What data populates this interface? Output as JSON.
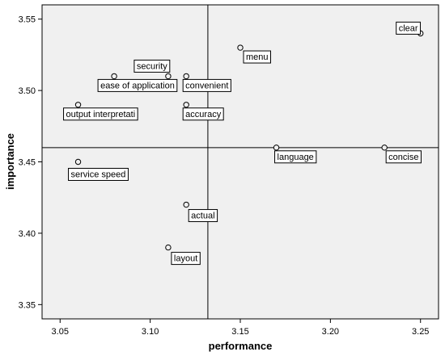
{
  "chart_data": {
    "type": "scatter",
    "title": "",
    "xlabel": "performance",
    "ylabel": "importance",
    "xlim": [
      3.04,
      3.26
    ],
    "ylim": [
      3.34,
      3.56
    ],
    "xticks": [
      "3.05",
      "3.10",
      "3.15",
      "3.20",
      "3.25"
    ],
    "xtick_values": [
      3.05,
      3.1,
      3.15,
      3.2,
      3.25
    ],
    "yticks": [
      "3.35",
      "3.40",
      "3.45",
      "3.50",
      "3.55"
    ],
    "ytick_values": [
      3.35,
      3.4,
      3.45,
      3.5,
      3.55
    ],
    "reference_lines": {
      "x": 3.132,
      "y": 3.46
    },
    "grid": false,
    "background": "#f0f0f0",
    "points": [
      {
        "label": "clear",
        "x": 3.25,
        "y": 3.54
      },
      {
        "label": "menu",
        "x": 3.15,
        "y": 3.53
      },
      {
        "label": "security",
        "x": 3.11,
        "y": 3.51
      },
      {
        "label": "ease of application",
        "x": 3.08,
        "y": 3.51
      },
      {
        "label": "convenient",
        "x": 3.12,
        "y": 3.51
      },
      {
        "label": "output interpretati",
        "x": 3.06,
        "y": 3.49
      },
      {
        "label": "accuracy",
        "x": 3.12,
        "y": 3.49
      },
      {
        "label": "language",
        "x": 3.17,
        "y": 3.46
      },
      {
        "label": "concise",
        "x": 3.23,
        "y": 3.46
      },
      {
        "label": "service speed",
        "x": 3.06,
        "y": 3.45
      },
      {
        "label": "actual",
        "x": 3.12,
        "y": 3.42
      },
      {
        "label": "layout",
        "x": 3.11,
        "y": 3.39
      }
    ]
  }
}
